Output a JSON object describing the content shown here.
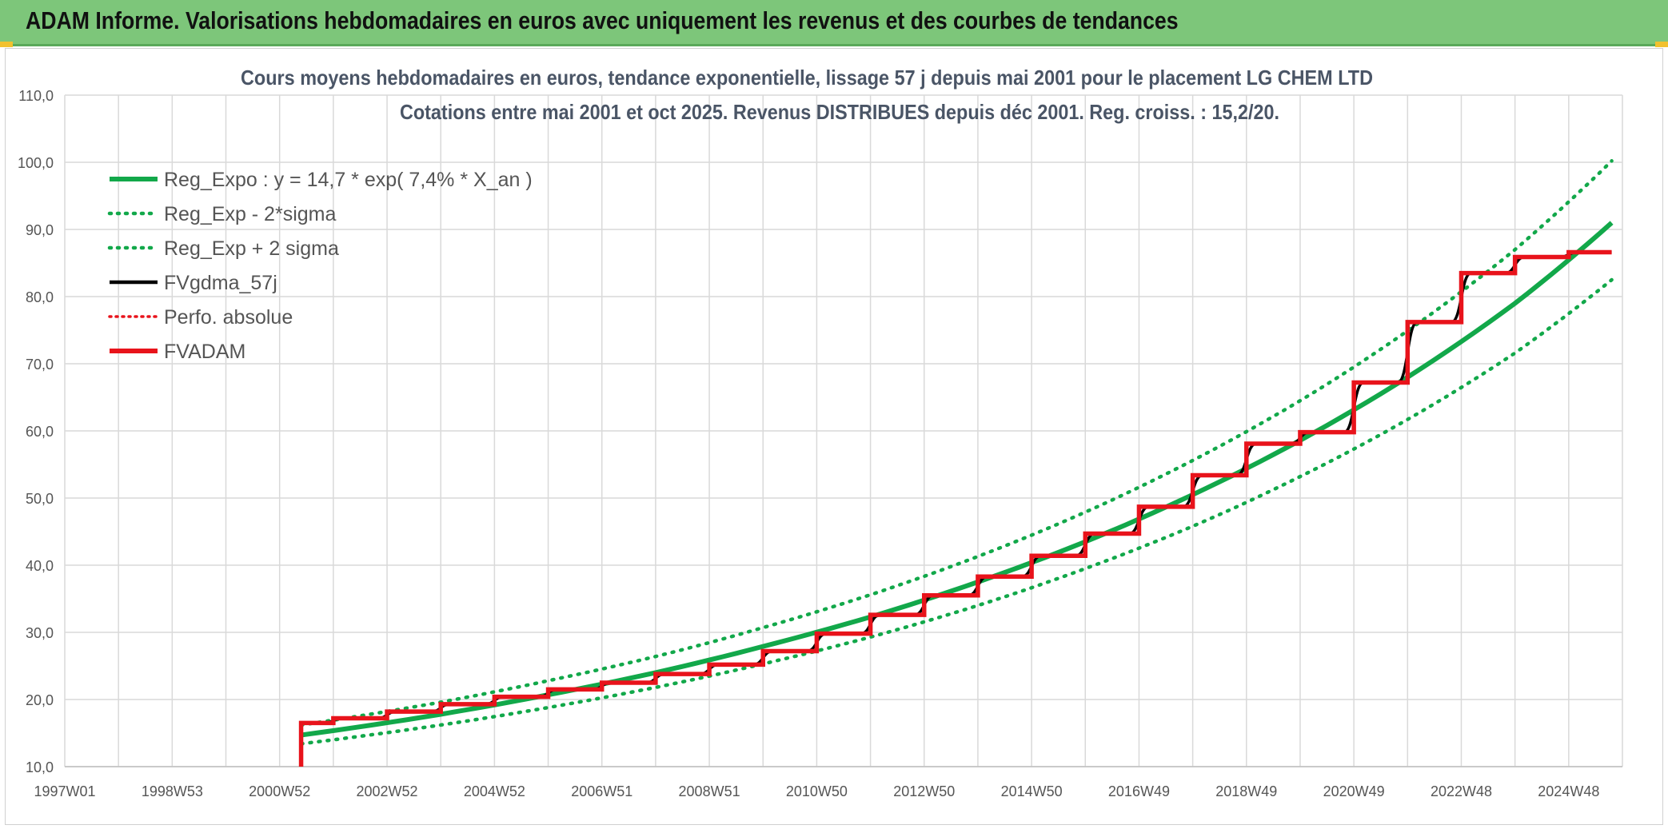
{
  "header": {
    "title": "ADAM Informe. Valorisations hebdomadaires en euros avec uniquement les revenus et des courbes de tendances"
  },
  "colors": {
    "header_bg": "#7dc67a",
    "regexpo": "#12a84a",
    "fvgdma": "#000000",
    "fvadam": "#e8131b",
    "grid": "#d9d9d9"
  },
  "chart_data": {
    "type": "line",
    "title_line1": "Cours moyens hebdomadaires en euros, tendance exponentielle, lissage 57 j depuis mai 2001 pour le placement LG CHEM LTD",
    "title_line2": "Cotations entre mai 2001 et oct 2025. Revenus DISTRIBUES depuis déc 2001. Reg. croiss. : 15,2/20.",
    "x_tick_labels": [
      "1997W01",
      "1998W53",
      "2000W52",
      "2002W52",
      "2004W52",
      "2006W51",
      "2008W51",
      "2010W50",
      "2012W50",
      "2014W50",
      "2016W49",
      "2018W49",
      "2020W49",
      "2022W48",
      "2024W48"
    ],
    "x_range": [
      1997.0,
      2026.0
    ],
    "ylim": [
      10,
      110
    ],
    "y_tick_labels": [
      "10,0",
      "20,0",
      "30,0",
      "40,0",
      "50,0",
      "60,0",
      "70,0",
      "80,0",
      "90,0",
      "100,0",
      "110,0"
    ],
    "y_ticks": [
      10,
      20,
      30,
      40,
      50,
      60,
      70,
      80,
      90,
      100,
      110
    ],
    "grid": true,
    "legend_position": "top-left",
    "legend": [
      {
        "label": "Reg_Expo : y = 14,7 * exp( 7,4% *  X_an )",
        "style": "solid-thick-green"
      },
      {
        "label": "Reg_Exp - 2*sigma",
        "style": "dotted-green"
      },
      {
        "label": "Reg_Exp + 2 sigma",
        "style": "dotted-green"
      },
      {
        "label": "FVgdma_57j",
        "style": "solid-black"
      },
      {
        "label": "Perfo. absolue",
        "style": "dotted-red"
      },
      {
        "label": "FVADAM",
        "style": "solid-thick-red"
      }
    ],
    "series": [
      {
        "name": "Reg_Expo : y = 14,7 * exp( 7,4% *  X_an )",
        "x": [
          2001.4,
          2004.0,
          2006.0,
          2008.0,
          2010.0,
          2012.0,
          2014.0,
          2016.0,
          2018.0,
          2020.0,
          2022.0,
          2024.0,
          2025.8
        ],
        "y": [
          14.7,
          17.8,
          20.7,
          24.0,
          27.9,
          32.3,
          37.5,
          43.5,
          50.5,
          58.6,
          68.0,
          79.0,
          91.0
        ]
      },
      {
        "name": "Reg_Exp - 2*sigma",
        "x": [
          2001.4,
          2004.0,
          2006.0,
          2008.0,
          2010.0,
          2012.0,
          2014.0,
          2016.0,
          2018.0,
          2020.0,
          2022.0,
          2024.0,
          2025.8
        ],
        "y": [
          13.4,
          16.2,
          18.8,
          21.8,
          25.3,
          29.3,
          34.0,
          39.5,
          45.8,
          53.2,
          61.7,
          71.6,
          82.5
        ]
      },
      {
        "name": "Reg_Exp + 2 sigma",
        "x": [
          2001.4,
          2004.0,
          2006.0,
          2008.0,
          2010.0,
          2012.0,
          2014.0,
          2016.0,
          2018.0,
          2020.0,
          2022.0,
          2024.0,
          2025.8
        ],
        "y": [
          16.2,
          19.6,
          22.8,
          26.4,
          30.7,
          35.6,
          41.3,
          47.9,
          55.6,
          64.5,
          74.9,
          87.0,
          100.2
        ]
      },
      {
        "name": "FVADAM",
        "steps": [
          {
            "x": 2001.4,
            "y": 16.5
          },
          {
            "x": 2002.0,
            "y": 17.2
          },
          {
            "x": 2003.0,
            "y": 18.2
          },
          {
            "x": 2004.0,
            "y": 19.3
          },
          {
            "x": 2005.0,
            "y": 20.4
          },
          {
            "x": 2006.0,
            "y": 21.5
          },
          {
            "x": 2007.0,
            "y": 22.5
          },
          {
            "x": 2008.0,
            "y": 23.8
          },
          {
            "x": 2009.0,
            "y": 25.2
          },
          {
            "x": 2010.0,
            "y": 27.2
          },
          {
            "x": 2011.0,
            "y": 29.8
          },
          {
            "x": 2012.0,
            "y": 32.6
          },
          {
            "x": 2013.0,
            "y": 35.5
          },
          {
            "x": 2014.0,
            "y": 38.3
          },
          {
            "x": 2015.0,
            "y": 41.4
          },
          {
            "x": 2016.0,
            "y": 44.7
          },
          {
            "x": 2017.0,
            "y": 48.7
          },
          {
            "x": 2018.0,
            "y": 53.4
          },
          {
            "x": 2019.0,
            "y": 58.1
          },
          {
            "x": 2020.0,
            "y": 59.8
          },
          {
            "x": 2021.0,
            "y": 67.2
          },
          {
            "x": 2022.0,
            "y": 76.2
          },
          {
            "x": 2023.0,
            "y": 83.5
          },
          {
            "x": 2024.0,
            "y": 85.9
          },
          {
            "x": 2025.0,
            "y": 86.6
          }
        ],
        "x_end": 2025.8,
        "start_from": 10.0
      }
    ]
  }
}
